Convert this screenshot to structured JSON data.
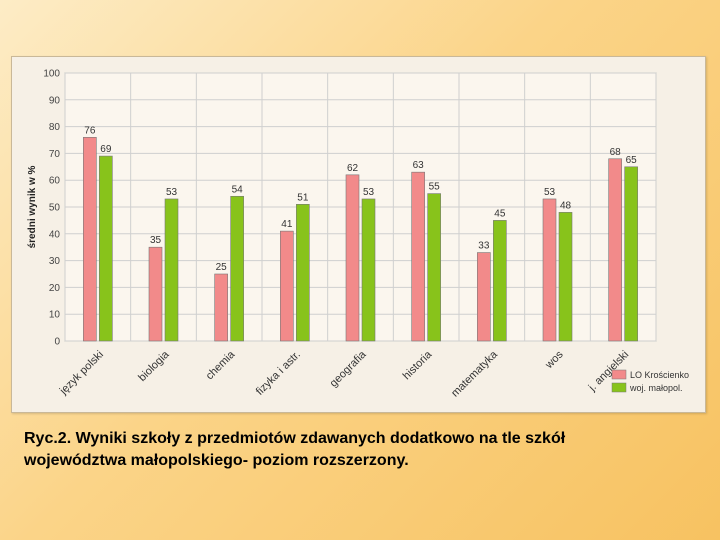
{
  "caption": "Ryc.2. Wyniki szkoły z przedmiotów zdawanych dodatkowo na tle szkół\nwojewództwa małopolskiego- poziom rozszerzony.",
  "chart_data": {
    "type": "bar",
    "ylabel": "średni wynik w %",
    "ylim": [
      0,
      100
    ],
    "yticks": [
      0,
      10,
      20,
      30,
      40,
      50,
      60,
      70,
      80,
      90,
      100
    ],
    "grid": true,
    "legend_position": "bottom-right",
    "categories": [
      "język polski",
      "biologia",
      "chemia",
      "fizyka i astr.",
      "geografia",
      "historia",
      "matematyka",
      "wos",
      "j. angielski"
    ],
    "series": [
      {
        "name": "LO Krościenko",
        "color": "#f28a8a",
        "values": [
          76,
          35,
          25,
          41,
          62,
          63,
          33,
          53,
          68
        ]
      },
      {
        "name": "woj. małopol.",
        "color": "#88c31b",
        "values": [
          69,
          53,
          54,
          51,
          53,
          55,
          45,
          48,
          65
        ]
      }
    ]
  }
}
